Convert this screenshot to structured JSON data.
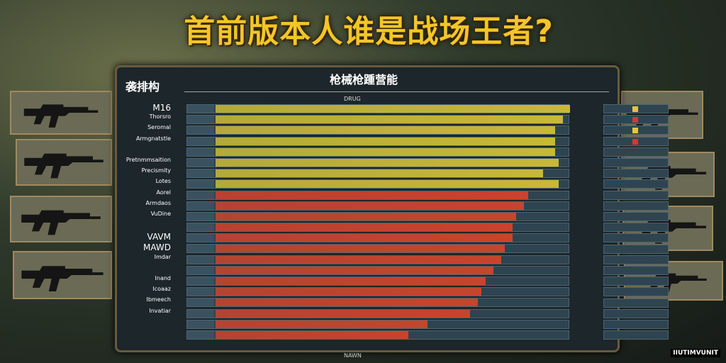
{
  "title": "首前版本人谁是战场王者?",
  "panel": {
    "title": "枪械枪踵营能",
    "corner_label": "袭排构",
    "subheader": "DRUG",
    "footer": "NAWN"
  },
  "labels": [
    "M16",
    "Thorsro",
    "Seromal",
    "Armgnatstle",
    "",
    "Pretnmmsaition",
    "Precismity",
    "Lotes",
    "Aorel",
    "Armdaos",
    "VuDine",
    "",
    "VAVM",
    "MAWD",
    "Imdar",
    "",
    "Inand",
    "Icoaaz",
    "Ibmeech",
    "Invatiar",
    "",
    ""
  ],
  "colors": {
    "yellow": "#c8b838",
    "red": "#c8442c",
    "accent": "#f2c62a"
  },
  "chart_data": {
    "type": "bar",
    "orientation": "horizontal",
    "values_percent": [
      92,
      90,
      88,
      88,
      88,
      89,
      85,
      89,
      81,
      80,
      78,
      77,
      77,
      75,
      74,
      72,
      70,
      69,
      68,
      66,
      55,
      50
    ],
    "colors": [
      "yellow",
      "yellow",
      "yellow",
      "yellow",
      "yellow",
      "yellow",
      "yellow",
      "yellow",
      "red",
      "red",
      "red",
      "red",
      "red",
      "red",
      "red",
      "red",
      "red",
      "red",
      "red",
      "red",
      "red",
      "red"
    ]
  },
  "watermark": "IIUTIMVUNIT",
  "guns": [
    "assault-rifle",
    "smg",
    "carbine",
    "rifle",
    "rifle",
    "carbine",
    "sniper",
    "sniper"
  ]
}
